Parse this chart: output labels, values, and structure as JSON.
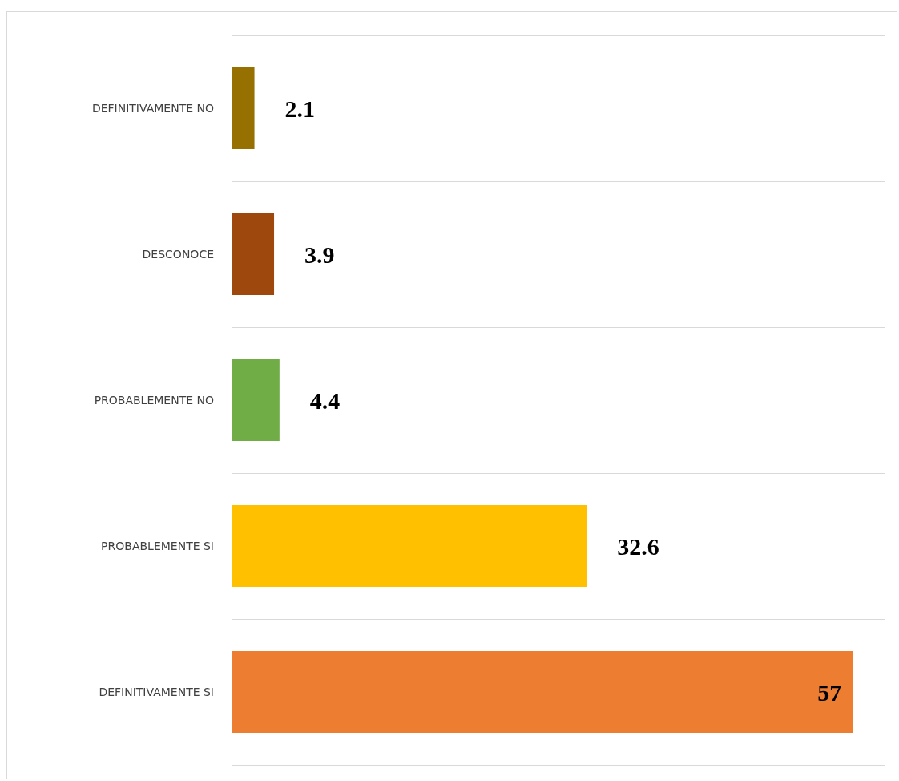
{
  "chart_data": {
    "type": "bar",
    "orientation": "horizontal",
    "categories": [
      "DEFINITIVAMENTE NO",
      "DESCONOCE",
      "PROBABLEMENTE NO",
      "PROBABLEMENTE SI",
      "DEFINITIVAMENTE SI"
    ],
    "values": [
      2.1,
      3.9,
      4.4,
      32.6,
      57
    ],
    "colors": [
      "#967000",
      "#9e480e",
      "#70ad47",
      "#ffc000",
      "#ed7d31"
    ],
    "data_labels": true,
    "grid": "y"
  }
}
